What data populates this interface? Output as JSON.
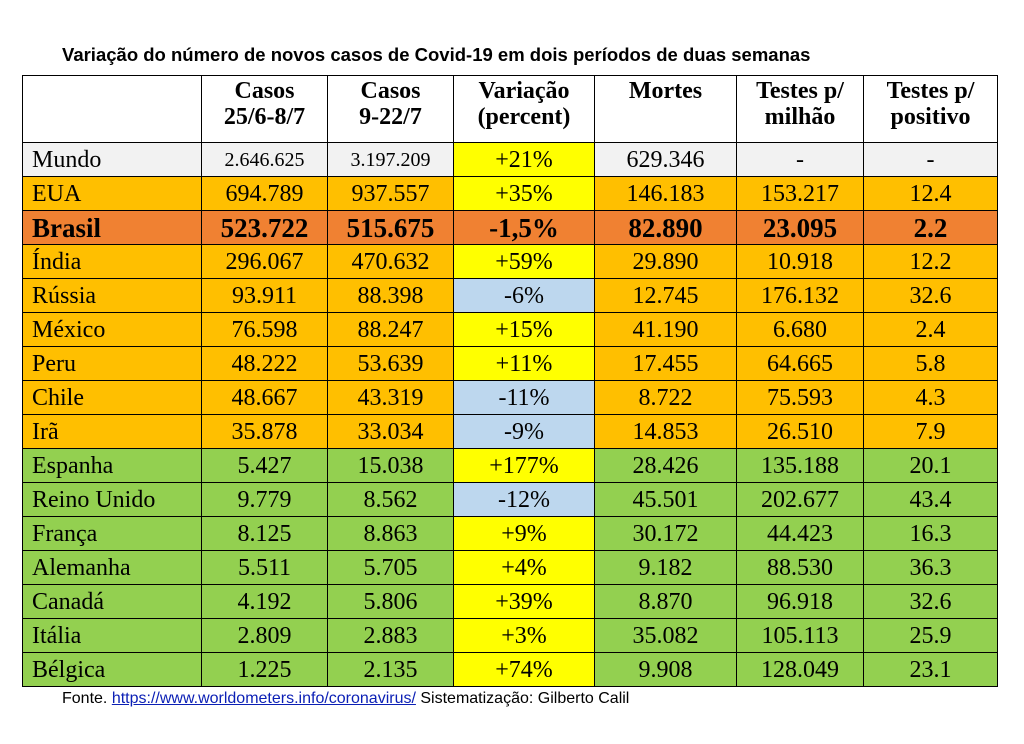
{
  "title": "Variação do número de novos casos de Covid-19 em dois períodos de duas semanas",
  "headers": [
    [
      "",
      ""
    ],
    [
      "Casos",
      "25/6-8/7"
    ],
    [
      "Casos",
      "9-22/7"
    ],
    [
      "Variação",
      "(percent)"
    ],
    [
      "Mortes",
      ""
    ],
    [
      "Testes p/",
      "milhão"
    ],
    [
      "Testes p/",
      "positivo"
    ]
  ],
  "colors": {
    "white": "#f2f2f2",
    "orange": "#ffbf00",
    "highlight": "#f08132",
    "green": "#93d050",
    "yellow": "#ffff00",
    "blue": "#bdd7ee"
  },
  "rows": [
    {
      "country": "Mundo",
      "c1": "2.646.625",
      "c2": "3.197.209",
      "var": "+21%",
      "mortes": "629.346",
      "tm": "-",
      "tp": "-",
      "row_color": "white",
      "var_color": "yellow"
    },
    {
      "country": "EUA",
      "c1": "694.789",
      "c2": "937.557",
      "var": "+35%",
      "mortes": "146.183",
      "tm": "153.217",
      "tp": "12.4",
      "row_color": "orange",
      "var_color": "yellow"
    },
    {
      "country": "Brasil",
      "c1": "523.722",
      "c2": "515.675",
      "var": "-1,5%",
      "mortes": "82.890",
      "tm": "23.095",
      "tp": "2.2",
      "row_color": "highlight",
      "var_color": "highlight"
    },
    {
      "country": "Índia",
      "c1": "296.067",
      "c2": "470.632",
      "var": "+59%",
      "mortes": "29.890",
      "tm": "10.918",
      "tp": "12.2",
      "row_color": "orange",
      "var_color": "yellow"
    },
    {
      "country": "Rússia",
      "c1": "93.911",
      "c2": "88.398",
      "var": "-6%",
      "mortes": "12.745",
      "tm": "176.132",
      "tp": "32.6",
      "row_color": "orange",
      "var_color": "blue"
    },
    {
      "country": "México",
      "c1": "76.598",
      "c2": "88.247",
      "var": "+15%",
      "mortes": "41.190",
      "tm": "6.680",
      "tp": "2.4",
      "row_color": "orange",
      "var_color": "yellow"
    },
    {
      "country": "Peru",
      "c1": "48.222",
      "c2": "53.639",
      "var": "+11%",
      "mortes": "17.455",
      "tm": "64.665",
      "tp": "5.8",
      "row_color": "orange",
      "var_color": "yellow"
    },
    {
      "country": "Chile",
      "c1": "48.667",
      "c2": "43.319",
      "var": "-11%",
      "mortes": "8.722",
      "tm": "75.593",
      "tp": "4.3",
      "row_color": "orange",
      "var_color": "blue"
    },
    {
      "country": "Irã",
      "c1": "35.878",
      "c2": "33.034",
      "var": "-9%",
      "mortes": "14.853",
      "tm": "26.510",
      "tp": "7.9",
      "row_color": "orange",
      "var_color": "blue"
    },
    {
      "country": "Espanha",
      "c1": "5.427",
      "c2": "15.038",
      "var": "+177%",
      "mortes": "28.426",
      "tm": "135.188",
      "tp": "20.1",
      "row_color": "green",
      "var_color": "yellow"
    },
    {
      "country": "Reino Unido",
      "c1": "9.779",
      "c2": "8.562",
      "var": "-12%",
      "mortes": "45.501",
      "tm": "202.677",
      "tp": "43.4",
      "row_color": "green",
      "var_color": "blue"
    },
    {
      "country": "França",
      "c1": "8.125",
      "c2": "8.863",
      "var": "+9%",
      "mortes": "30.172",
      "tm": "44.423",
      "tp": "16.3",
      "row_color": "green",
      "var_color": "yellow"
    },
    {
      "country": "Alemanha",
      "c1": "5.511",
      "c2": "5.705",
      "var": "+4%",
      "mortes": "9.182",
      "tm": "88.530",
      "tp": "36.3",
      "row_color": "green",
      "var_color": "yellow"
    },
    {
      "country": "Canadá",
      "c1": "4.192",
      "c2": "5.806",
      "var": "+39%",
      "mortes": "8.870",
      "tm": "96.918",
      "tp": "32.6",
      "row_color": "green",
      "var_color": "yellow"
    },
    {
      "country": "Itália",
      "c1": "2.809",
      "c2": "2.883",
      "var": "+3%",
      "mortes": "35.082",
      "tm": "105.113",
      "tp": "25.9",
      "row_color": "green",
      "var_color": "yellow"
    },
    {
      "country": "Bélgica",
      "c1": "1.225",
      "c2": "2.135",
      "var": "+74%",
      "mortes": "9.908",
      "tm": "128.049",
      "tp": "23.1",
      "row_color": "green",
      "var_color": "yellow"
    }
  ],
  "footer": {
    "prefix": "Fonte. ",
    "link": "https://www.worldometers.info/coronavirus/",
    "suffix": " Sistematização: Gilberto Calil"
  }
}
